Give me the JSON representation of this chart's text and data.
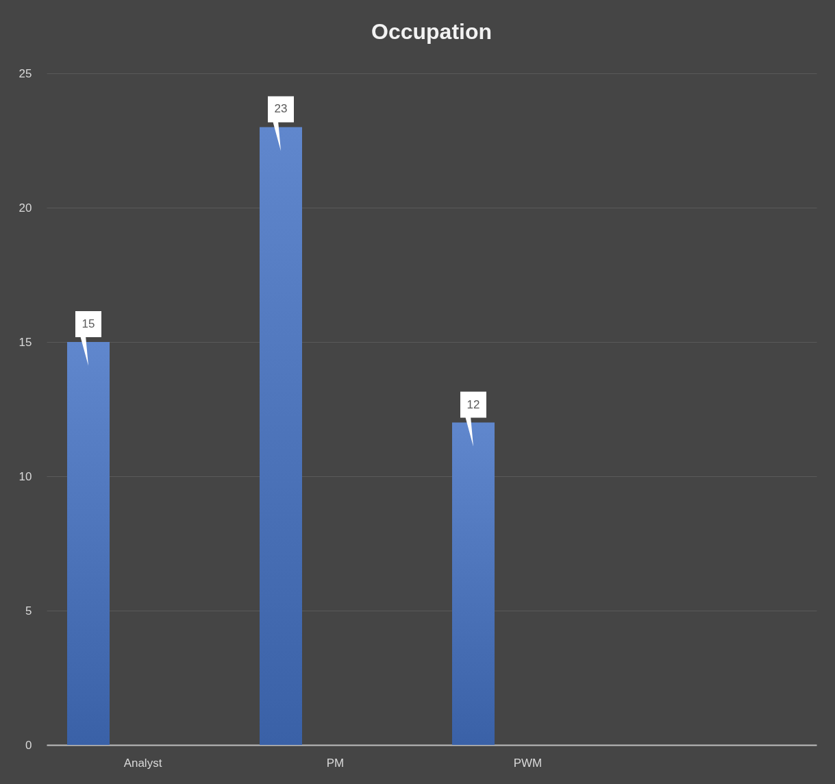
{
  "chart_data": {
    "type": "bar",
    "title": "Occupation",
    "categories": [
      "Analyst",
      "PM",
      "PWM",
      null
    ],
    "values": [
      15,
      23,
      12,
      null
    ],
    "color": "#4472c4",
    "ylim": [
      0,
      25
    ],
    "yticks": [
      0,
      5,
      10,
      15,
      20,
      25
    ],
    "grid": "y",
    "data_labels": true
  }
}
